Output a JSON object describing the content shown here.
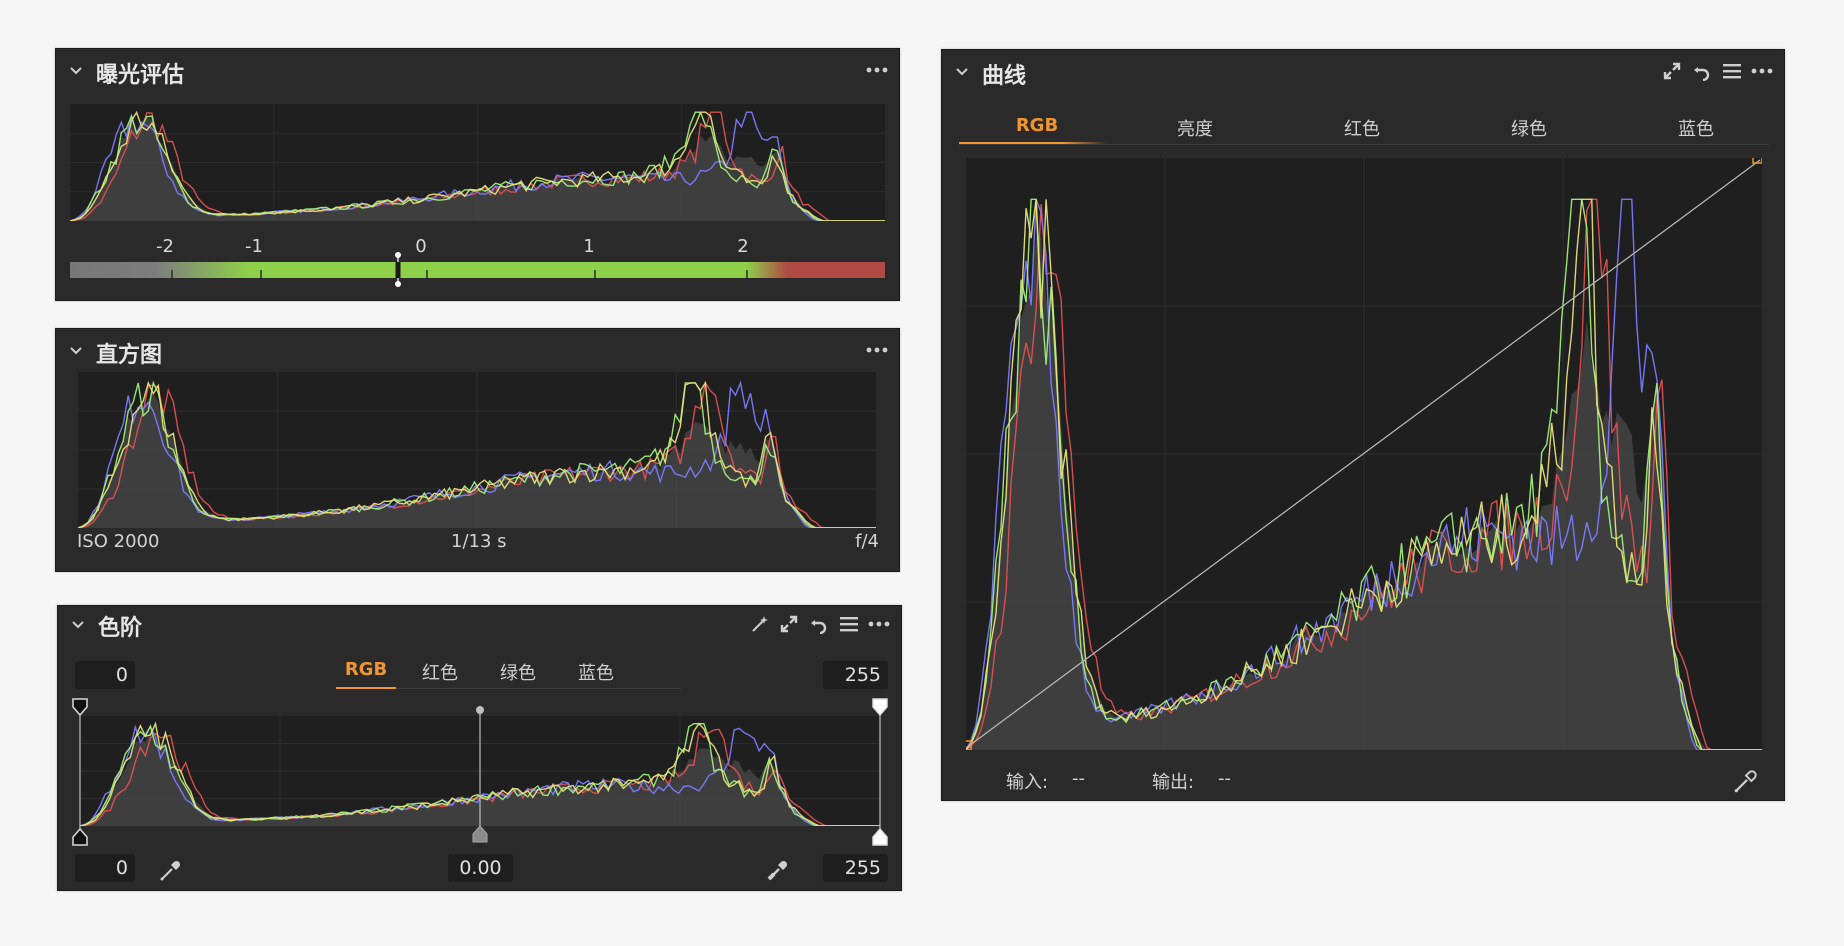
{
  "exposure_panel": {
    "title": "曝光评估",
    "meter_labels": [
      "-2",
      "-1",
      "0",
      "1",
      "2"
    ],
    "meter_value": -0.15
  },
  "histogram_panel": {
    "title": "直方图",
    "iso": "ISO 2000",
    "shutter": "1/13 s",
    "aperture": "f/4"
  },
  "levels_panel": {
    "title": "色阶",
    "tabs": [
      "RGB",
      "红色",
      "绿色",
      "蓝色"
    ],
    "active_tab": "RGB",
    "input_low": "0",
    "input_high": "255",
    "output_low": "0",
    "midpoint": "0.00",
    "output_high": "255"
  },
  "curves_panel": {
    "title": "曲线",
    "tabs": [
      "RGB",
      "亮度",
      "红色",
      "绿色",
      "蓝色"
    ],
    "active_tab": "RGB",
    "input_label": "输入:",
    "input_value": "--",
    "output_label": "输出:",
    "output_value": "--"
  },
  "colors": {
    "accent": "#f0952f",
    "red_channel": "#e05050",
    "green_channel": "#9ef07a",
    "blue_channel": "#7b7bff",
    "yellow_channel": "#e8e07a",
    "meter_green": "#8fd04a",
    "meter_red": "#b04a44"
  },
  "icons": {
    "collapse": "chevron-down-icon",
    "more": "more-icon",
    "expand": "expand-icon",
    "reset": "reset-icon",
    "menu": "menu-icon",
    "picker": "color-picker-icon"
  }
}
